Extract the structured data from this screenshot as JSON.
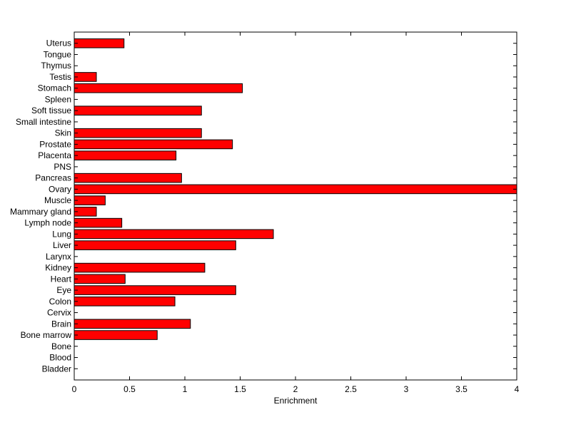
{
  "chart_data": {
    "type": "bar",
    "orientation": "horizontal",
    "xlabel": "Enrichment",
    "ylabel": "",
    "title": "",
    "xlim": [
      0,
      4
    ],
    "x_ticks": [
      "0",
      "0.5",
      "1",
      "1.5",
      "2",
      "2.5",
      "3",
      "3.5",
      "4"
    ],
    "x_tick_values": [
      0,
      0.5,
      1,
      1.5,
      2,
      2.5,
      3,
      3.5,
      4
    ],
    "grid": false,
    "bar_color": "#ff0000",
    "bar_edge_color": "#000000",
    "categories": [
      "Uterus",
      "Tongue",
      "Thymus",
      "Testis",
      "Stomach",
      "Spleen",
      "Soft tissue",
      "Small intestine",
      "Skin",
      "Prostate",
      "Placenta",
      "PNS",
      "Pancreas",
      "Ovary",
      "Muscle",
      "Mammary gland",
      "Lymph node",
      "Lung",
      "Liver",
      "Larynx",
      "Kidney",
      "Heart",
      "Eye",
      "Colon",
      "Cervix",
      "Brain",
      "Bone marrow",
      "Bone",
      "Blood",
      "Bladder"
    ],
    "values": [
      0.45,
      0,
      0,
      0.2,
      1.52,
      0,
      1.15,
      0,
      1.15,
      1.43,
      0.92,
      0,
      0.97,
      4.0,
      0.28,
      0.2,
      0.43,
      1.8,
      1.46,
      0,
      1.18,
      0.46,
      1.46,
      0.91,
      0,
      1.05,
      0.75,
      0,
      0,
      0
    ]
  }
}
